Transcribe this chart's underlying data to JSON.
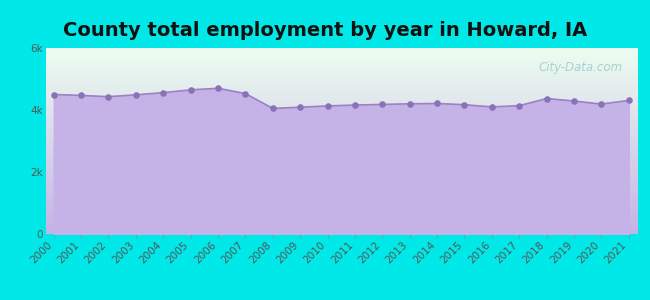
{
  "title": "County total employment by year in Howard, IA",
  "years": [
    2000,
    2001,
    2002,
    2003,
    2004,
    2005,
    2006,
    2007,
    2008,
    2009,
    2010,
    2011,
    2012,
    2013,
    2014,
    2015,
    2016,
    2017,
    2018,
    2019,
    2020,
    2021
  ],
  "values": [
    4500,
    4470,
    4430,
    4490,
    4560,
    4650,
    4700,
    4530,
    4050,
    4090,
    4130,
    4160,
    4180,
    4200,
    4210,
    4170,
    4100,
    4140,
    4370,
    4290,
    4190,
    4310
  ],
  "ylim": [
    0,
    6000
  ],
  "yticks": [
    0,
    2000,
    4000,
    6000
  ],
  "ytick_labels": [
    "0",
    "2k",
    "4k",
    "6k"
  ],
  "fill_color": "#c5b2e6",
  "line_color": "#9b82c4",
  "dot_color": "#8b72b8",
  "background_outer": "#00e8e8",
  "bg_top_color": "#edfef0",
  "bg_bottom_color": "#c5b2e6",
  "title_fontsize": 14,
  "title_fontweight": "bold",
  "title_color": "#111111",
  "watermark": "City-Data.com",
  "watermark_color": "#99cccc",
  "tick_label_color": "#555555",
  "tick_fontsize": 7.5
}
